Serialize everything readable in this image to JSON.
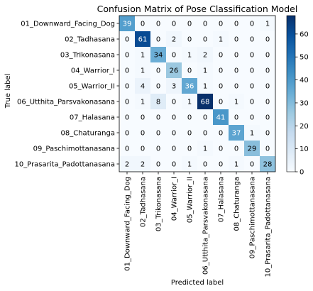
{
  "chart_data": {
    "type": "heatmap",
    "title": "Confusion Matrix of Pose Classification Model",
    "xlabel": "Predicted label",
    "ylabel": "True label",
    "labels": [
      "01_Downward_Facing_Dog",
      "02_Tadhasana",
      "03_Trikonasana",
      "04_Warrior_I",
      "05_Warrior_II",
      "06_Utthita_Parsvakonasana",
      "07_Halasana",
      "08_Chaturanga",
      "09_Paschimottanasana",
      "10_Prasarita_Padottanasana"
    ],
    "matrix": [
      [
        39,
        0,
        0,
        0,
        0,
        0,
        0,
        0,
        0,
        1
      ],
      [
        0,
        61,
        0,
        2,
        0,
        0,
        1,
        0,
        0,
        0
      ],
      [
        0,
        1,
        34,
        0,
        1,
        2,
        0,
        0,
        0,
        0
      ],
      [
        0,
        1,
        0,
        26,
        0,
        1,
        0,
        0,
        0,
        0
      ],
      [
        0,
        4,
        0,
        3,
        36,
        1,
        0,
        0,
        0,
        0
      ],
      [
        0,
        1,
        8,
        0,
        1,
        68,
        0,
        1,
        0,
        0
      ],
      [
        0,
        0,
        0,
        0,
        0,
        0,
        41,
        0,
        0,
        0
      ],
      [
        0,
        0,
        0,
        0,
        0,
        0,
        0,
        37,
        1,
        0
      ],
      [
        0,
        0,
        0,
        0,
        0,
        1,
        0,
        0,
        29,
        0
      ],
      [
        2,
        2,
        0,
        0,
        1,
        0,
        0,
        1,
        0,
        28
      ]
    ],
    "colormap": "Blues",
    "colorbar": {
      "range": [
        0,
        68
      ],
      "ticks": [
        "0",
        "10",
        "20",
        "30",
        "40",
        "50",
        "60"
      ],
      "tick_values": [
        0,
        10,
        20,
        30,
        40,
        50,
        60
      ]
    },
    "colors": {
      "low": "#f7fbff",
      "high": "#08306b",
      "text_dark": "#000000",
      "text_light": "#ffffff"
    }
  }
}
